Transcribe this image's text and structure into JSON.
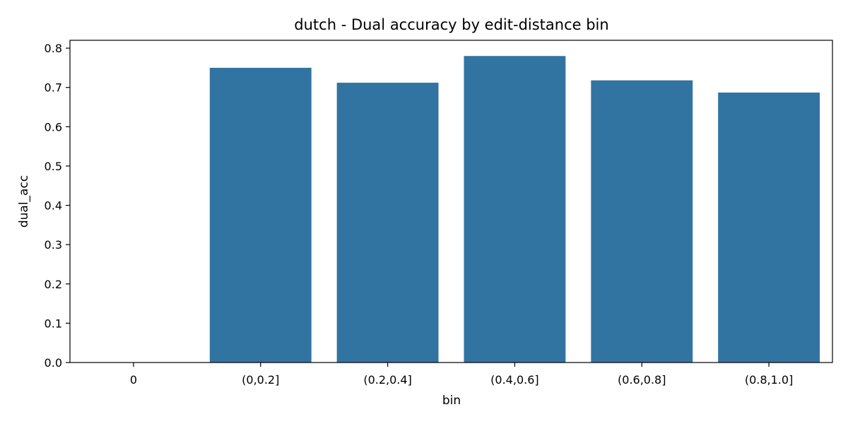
{
  "chart_data": {
    "type": "bar",
    "title": "dutch - Dual accuracy by edit-distance bin",
    "xlabel": "bin",
    "ylabel": "dual_acc",
    "categories": [
      "0",
      "(0,0.2]",
      "(0.2,0.4]",
      "(0.4,0.6]",
      "(0.6,0.8]",
      "(0.8,1.0]"
    ],
    "values": [
      0,
      0.75,
      0.712,
      0.78,
      0.718,
      0.687
    ],
    "ylim": [
      0,
      0.82
    ],
    "yticks": [
      0.0,
      0.1,
      0.2,
      0.3,
      0.4,
      0.5,
      0.6,
      0.7,
      0.8
    ],
    "ytick_labels": [
      "0.0",
      "0.1",
      "0.2",
      "0.3",
      "0.4",
      "0.5",
      "0.6",
      "0.7",
      "0.8"
    ],
    "grid": false,
    "bar_color": "#3274a1"
  }
}
